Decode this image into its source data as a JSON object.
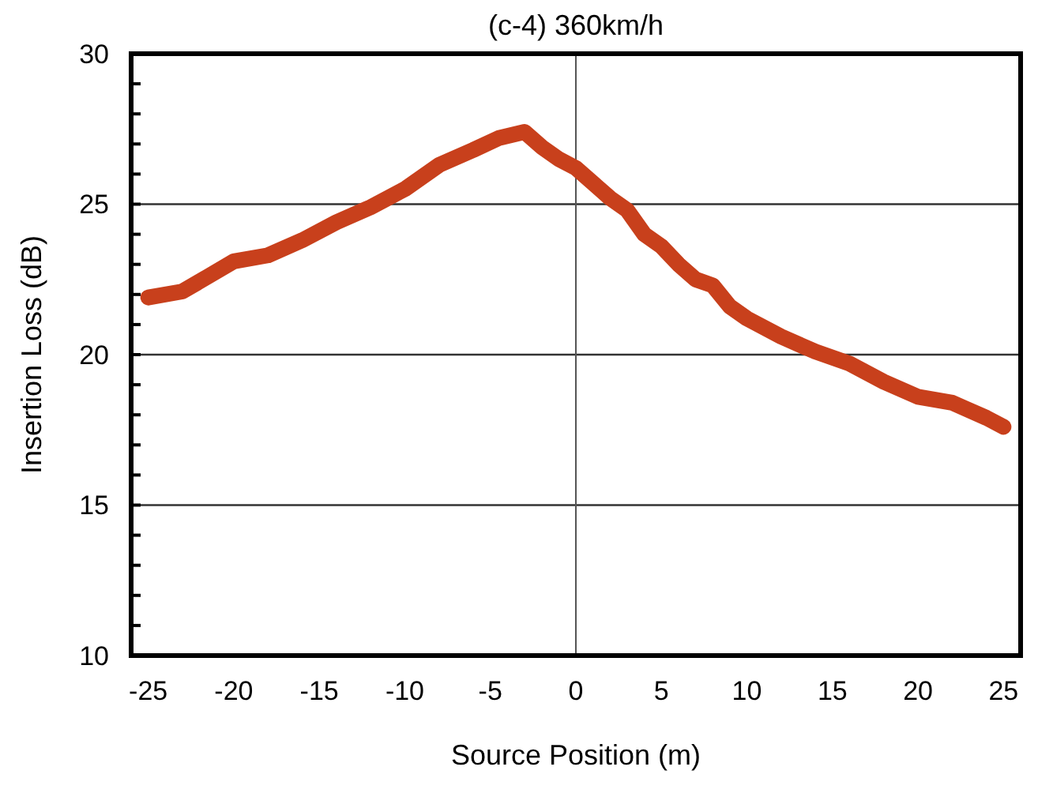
{
  "chart_data": {
    "type": "line",
    "title": "(c-4) 360km/h",
    "xlabel": "Source Position (m)",
    "ylabel": "Insertion Loss (dB)",
    "x": [
      -25,
      -23,
      -20,
      -18,
      -16,
      -14,
      -12,
      -10,
      -8,
      -6,
      -4.5,
      -3,
      -2,
      -1,
      0,
      1,
      2,
      3,
      4,
      5,
      6,
      7,
      8,
      9,
      10,
      12,
      14,
      16,
      18,
      20,
      22,
      24,
      25
    ],
    "series": [
      {
        "color": "#c8401c",
        "values": [
          21.9,
          22.1,
          23.1,
          23.3,
          23.8,
          24.4,
          24.9,
          25.5,
          26.3,
          26.8,
          27.2,
          27.4,
          26.9,
          26.5,
          26.2,
          25.7,
          25.2,
          24.8,
          24.0,
          23.6,
          23.0,
          22.5,
          22.3,
          21.6,
          21.2,
          20.6,
          20.1,
          19.7,
          19.1,
          18.6,
          18.4,
          17.9,
          17.6
        ]
      }
    ],
    "xlim": [
      -26,
      26
    ],
    "xticks": [
      -25,
      -20,
      -15,
      -10,
      -5,
      0,
      5,
      10,
      15,
      20,
      25
    ],
    "ylim": [
      10,
      30
    ],
    "yticks": [
      10,
      15,
      20,
      25,
      30
    ],
    "grid": "y",
    "ref_lines": [
      {
        "axis": "x",
        "value": 0
      }
    ],
    "marker": "none",
    "line_style": "solid"
  }
}
